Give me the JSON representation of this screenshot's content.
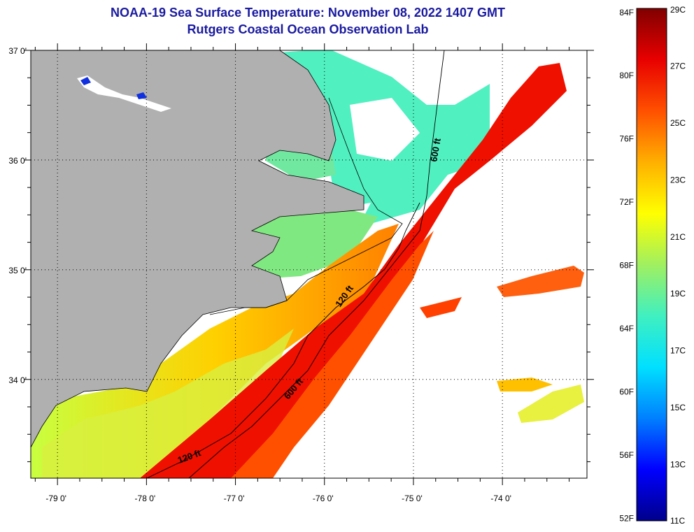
{
  "title": {
    "line1": "NOAA-19 Sea Surface Temperature:  November 08, 2022 1407 GMT",
    "line2": "Rutgers Coastal Ocean Observation Lab"
  },
  "map": {
    "lon_labels": [
      "-79 0'",
      "-78 0'",
      "-77 0'",
      "-76 0'",
      "-75 0'",
      "-74 0'"
    ],
    "lat_labels": [
      "37 0'",
      "36 0'",
      "35 0'",
      "34 0'"
    ],
    "lon_values": [
      -79,
      -78,
      -77,
      -76,
      -75,
      -74
    ],
    "lat_values": [
      37,
      36,
      35,
      34
    ],
    "lon_range": [
      -79.3,
      -73.05
    ],
    "lat_range": [
      33.1,
      37.0
    ],
    "contour_labels": [
      "600 ft",
      "120 ft",
      "600 ft",
      "120 ft"
    ],
    "colors": {
      "land": "#b0b0b0",
      "cloud": "#ffffff"
    }
  },
  "legend": {
    "fahrenheit_labels": [
      "84F",
      "80F",
      "76F",
      "72F",
      "68F",
      "64F",
      "60F",
      "56F",
      "52F"
    ],
    "celsius_labels": [
      "29C",
      "27C",
      "25C",
      "23C",
      "21C",
      "19C",
      "17C",
      "15C",
      "13C",
      "11C"
    ],
    "celsius_range": [
      11,
      29
    ],
    "colors": [
      "#00008b",
      "#0000ff",
      "#0080ff",
      "#00e0ff",
      "#40f0c0",
      "#a0f060",
      "#ffff00",
      "#ffb000",
      "#ff5000",
      "#e80000",
      "#800000"
    ]
  }
}
